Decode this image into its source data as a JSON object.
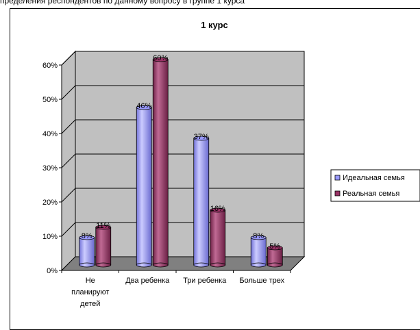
{
  "page": {
    "top_text": "пределения респондентов по данному вопросу в группе 1 курса"
  },
  "chart_data": {
    "type": "bar",
    "title": "1 курс",
    "categories": [
      "Не планируют детей",
      "Два ребенка",
      "Три ребенка",
      "Больше трех"
    ],
    "category_lines": [
      [
        "Не",
        "планируют",
        "детей"
      ],
      [
        "Два ребенка"
      ],
      [
        "Три ребенка"
      ],
      [
        "Больше трех"
      ]
    ],
    "series": [
      {
        "name": "Идеальная семья",
        "values": [
          8,
          46,
          37,
          8
        ],
        "labels": [
          "8%",
          "46%",
          "37%",
          "8%"
        ],
        "color": "#9999ff"
      },
      {
        "name": "Реальная семья",
        "values": [
          11,
          60,
          16,
          5
        ],
        "labels": [
          "11%",
          "60%",
          "16%",
          "5%"
        ],
        "color": "#993366"
      }
    ],
    "yticks": [
      "0%",
      "10%",
      "20%",
      "30%",
      "40%",
      "50%",
      "60%"
    ],
    "ylim": [
      0,
      60
    ],
    "grid": true,
    "legend": "right",
    "wall_color": "#c0c0c0",
    "floor_color": "#808080"
  }
}
